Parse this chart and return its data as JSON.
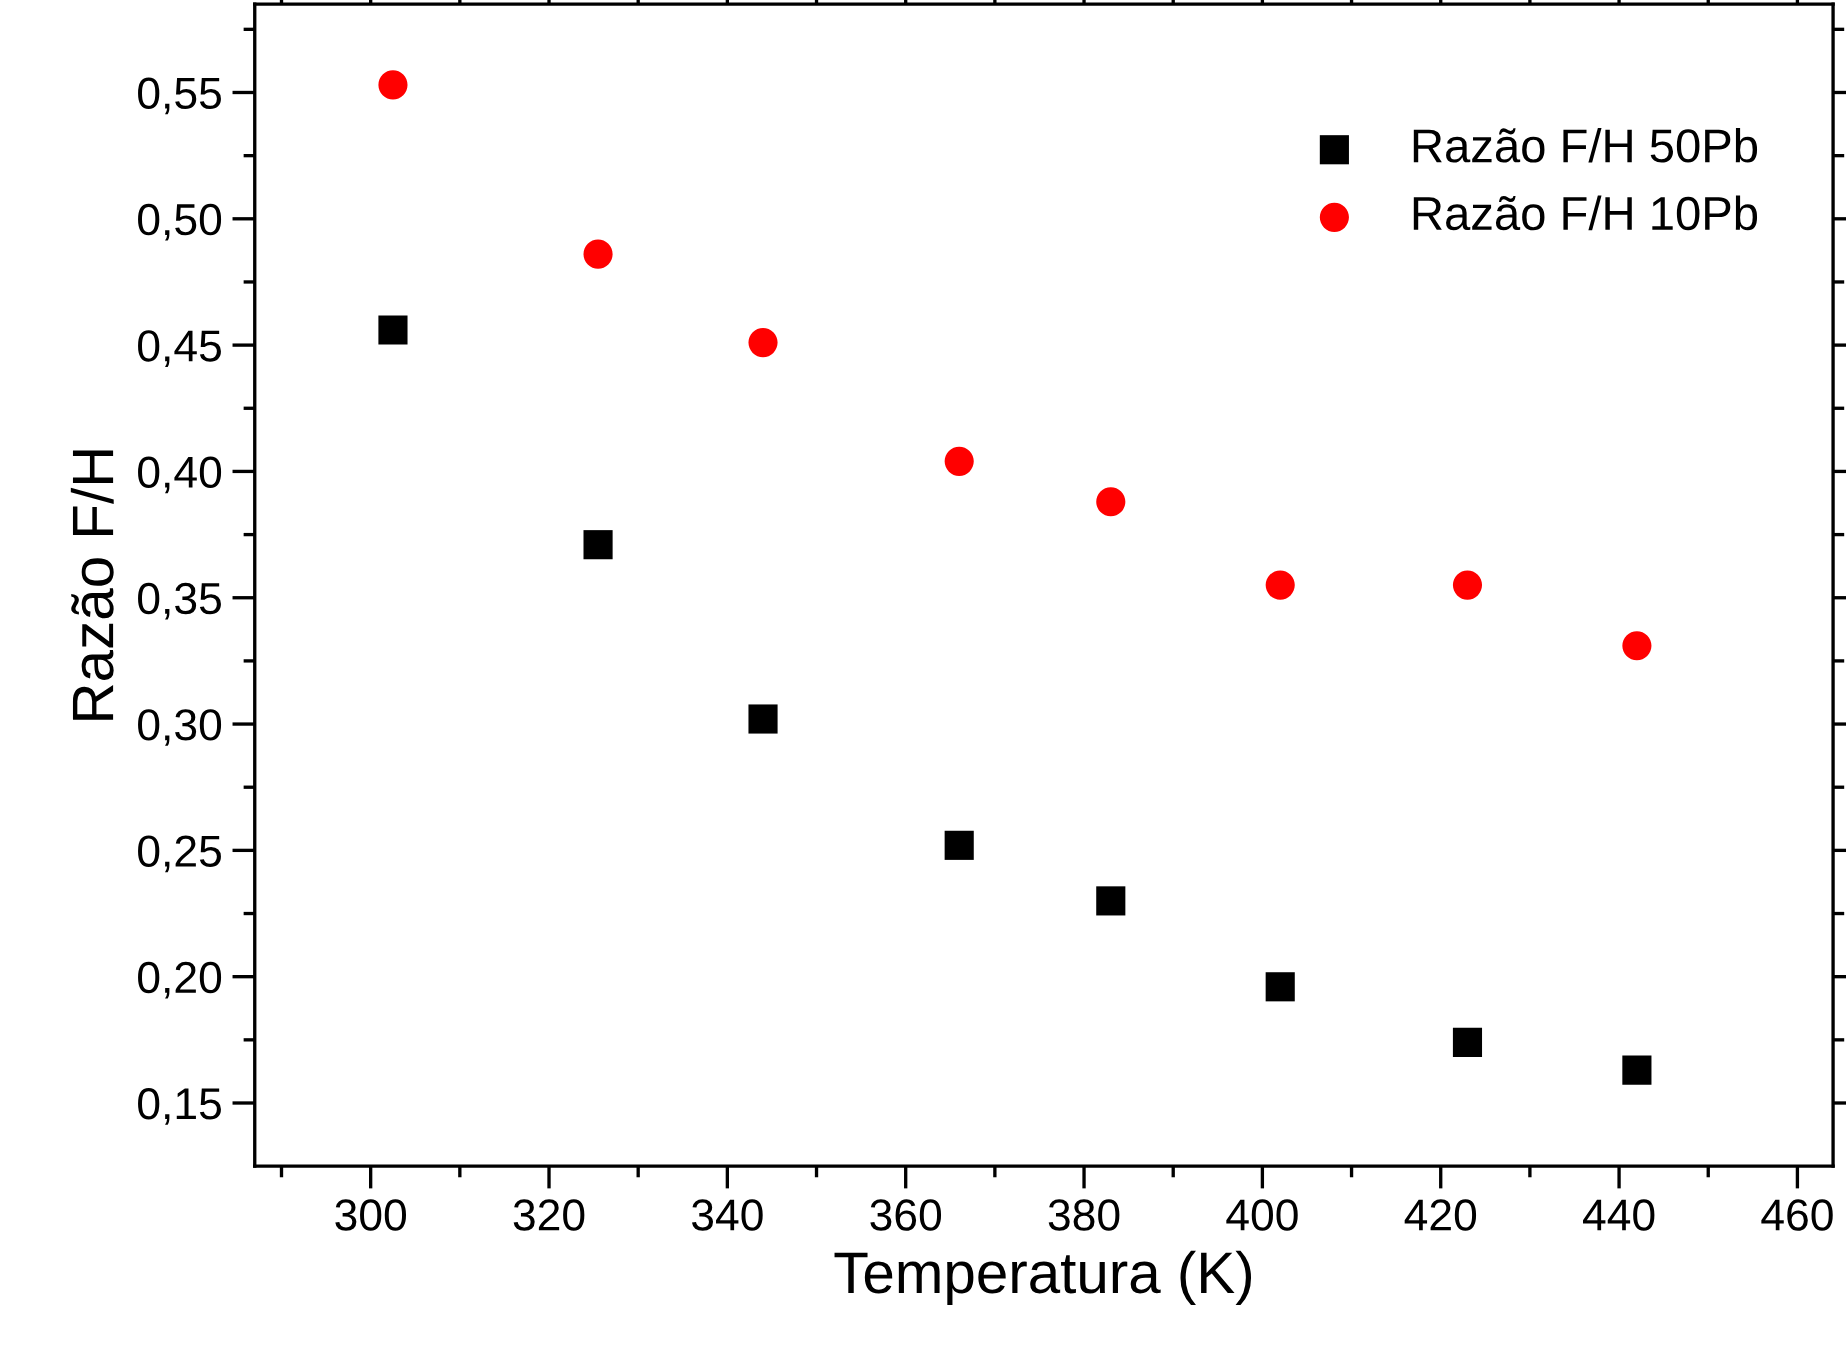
{
  "chart_data": {
    "type": "scatter",
    "xlabel": "Temperatura (K)",
    "ylabel": "Razão F/H",
    "x": [
      302.5,
      325.5,
      344,
      366,
      383,
      402,
      423,
      442
    ],
    "series": [
      {
        "name": "Razão F/H 50Pb",
        "color": "#000000",
        "marker": "square",
        "values": [
          0.456,
          0.371,
          0.302,
          0.252,
          0.23,
          0.196,
          0.174,
          0.163
        ]
      },
      {
        "name": "Razão F/H 10Pb",
        "color": "#ff0000",
        "marker": "circle",
        "values": [
          0.553,
          0.486,
          0.451,
          0.404,
          0.388,
          0.355,
          0.355,
          0.331
        ]
      }
    ],
    "xlim": [
      287,
      464
    ],
    "ylim": [
      0.125,
      0.585
    ],
    "xticks": [
      300,
      320,
      340,
      360,
      380,
      400,
      420,
      440,
      460
    ],
    "yticks": [
      {
        "value": 0.15,
        "label": "0,15"
      },
      {
        "value": 0.2,
        "label": "0,20"
      },
      {
        "value": 0.25,
        "label": "0,25"
      },
      {
        "value": 0.3,
        "label": "0,30"
      },
      {
        "value": 0.35,
        "label": "0,35"
      },
      {
        "value": 0.4,
        "label": "0,40"
      },
      {
        "value": 0.45,
        "label": "0,45"
      },
      {
        "value": 0.5,
        "label": "0,50"
      },
      {
        "value": 0.55,
        "label": "0,55"
      }
    ],
    "grid": false,
    "legend": "top right"
  }
}
